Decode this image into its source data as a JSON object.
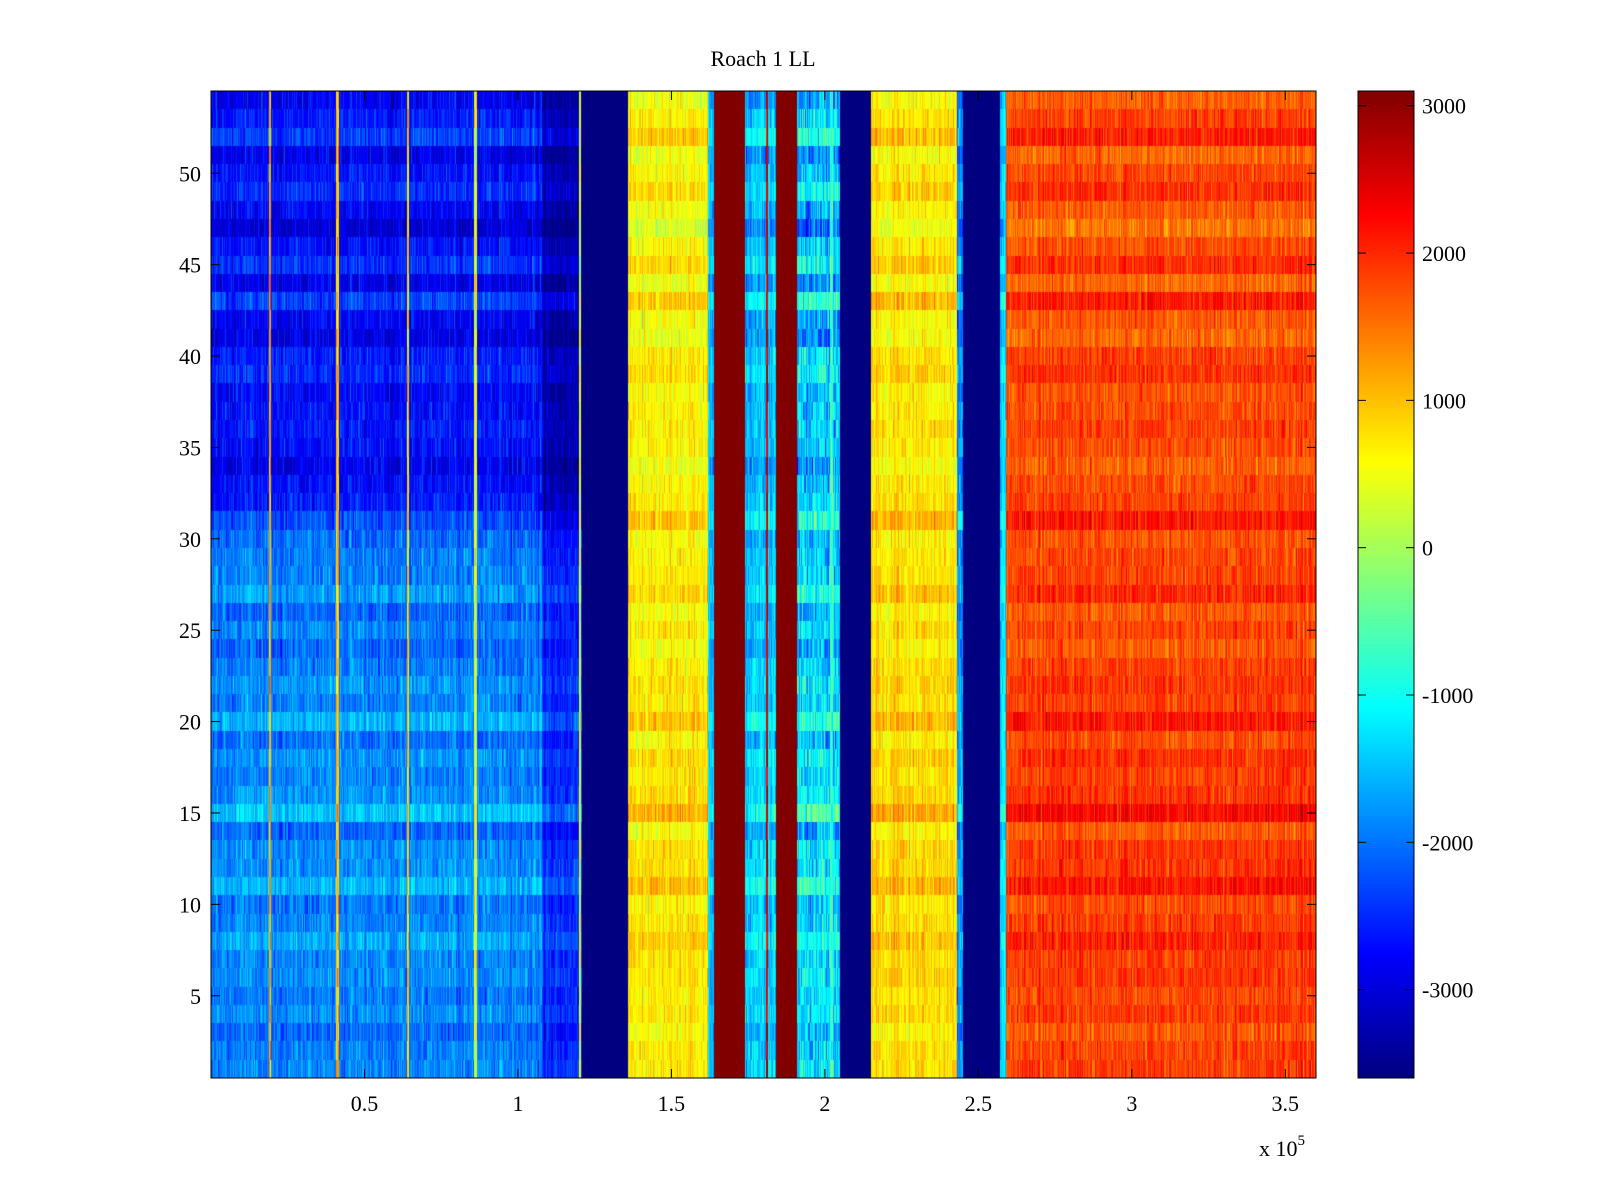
{
  "chart_data": {
    "type": "heatmap",
    "title": "Roach 1 LL",
    "xlabel": "",
    "ylabel": "",
    "x_multiplier_label": {
      "prefix": "x 10",
      "exponent": "5"
    },
    "xlim": [
      0,
      360000
    ],
    "ylim": [
      0.5,
      54.5
    ],
    "rows": 54,
    "x_ticks": [
      {
        "value": 50000,
        "label": "0.5"
      },
      {
        "value": 100000,
        "label": "1"
      },
      {
        "value": 150000,
        "label": "1.5"
      },
      {
        "value": 200000,
        "label": "2"
      },
      {
        "value": 250000,
        "label": "2.5"
      },
      {
        "value": 300000,
        "label": "3"
      },
      {
        "value": 350000,
        "label": "3.5"
      }
    ],
    "y_ticks": [
      {
        "value": 5,
        "label": "5"
      },
      {
        "value": 10,
        "label": "10"
      },
      {
        "value": 15,
        "label": "15"
      },
      {
        "value": 20,
        "label": "20"
      },
      {
        "value": 25,
        "label": "25"
      },
      {
        "value": 30,
        "label": "30"
      },
      {
        "value": 35,
        "label": "35"
      },
      {
        "value": 40,
        "label": "40"
      },
      {
        "value": 45,
        "label": "45"
      },
      {
        "value": 50,
        "label": "50"
      }
    ],
    "colorbar": {
      "colormap": "jet",
      "clim": [
        -3600,
        3100
      ],
      "ticks": [
        {
          "value": 3000,
          "label": "3000"
        },
        {
          "value": 2000,
          "label": "2000"
        },
        {
          "value": 1000,
          "label": "1000"
        },
        {
          "value": 0,
          "label": "0"
        },
        {
          "value": -1000,
          "label": "-1000"
        },
        {
          "value": -2000,
          "label": "-2000"
        },
        {
          "value": -3000,
          "label": "-3000"
        }
      ]
    },
    "bands": [
      {
        "x": [
          0,
          108000
        ],
        "value_rows_1_30": -1900,
        "value_rows_31_54": -2600,
        "noise": 350,
        "description": "low plateau"
      },
      {
        "x": [
          108000,
          121000
        ],
        "value_rows_1_30": -2500,
        "value_rows_31_54": -3200,
        "noise": 300,
        "description": "transition"
      },
      {
        "x": [
          121000,
          136000
        ],
        "value": -3600,
        "noise": 0,
        "description": "saturated low"
      },
      {
        "x": [
          136000,
          162000
        ],
        "value": 700,
        "noise": 300,
        "description": "mid plateau"
      },
      {
        "x": [
          162000,
          164000
        ],
        "value": -1500,
        "noise": 300
      },
      {
        "x": [
          164000,
          174000
        ],
        "value": 3100,
        "noise": 0,
        "description": "saturated high"
      },
      {
        "x": [
          174000,
          184000
        ],
        "value": -1400,
        "noise": 400
      },
      {
        "x": [
          184000,
          191000
        ],
        "value": 3100,
        "noise": 0,
        "description": "saturated high"
      },
      {
        "x": [
          191000,
          205000
        ],
        "value": -1300,
        "noise": 600
      },
      {
        "x": [
          205000,
          207000
        ],
        "value": -3600,
        "noise": 0
      },
      {
        "x": [
          207000,
          215000
        ],
        "value": -3600,
        "noise": 0,
        "description": "saturated low"
      },
      {
        "x": [
          215000,
          243000
        ],
        "value": 800,
        "noise": 300,
        "description": "mid plateau"
      },
      {
        "x": [
          243000,
          245000
        ],
        "value": -1800,
        "noise": 400
      },
      {
        "x": [
          245000,
          257000
        ],
        "value": -3600,
        "noise": 0,
        "description": "saturated low"
      },
      {
        "x": [
          257000,
          259000
        ],
        "value": -1200,
        "noise": 300
      },
      {
        "x": [
          259000,
          360000
        ],
        "value": 1850,
        "noise": 300,
        "description": "high plateau"
      }
    ],
    "spikes": [
      {
        "x": 19000,
        "value": 1200
      },
      {
        "x": 41000,
        "value": 1000
      },
      {
        "x": 64000,
        "value": 800
      },
      {
        "x": 86000,
        "value": 400
      },
      {
        "x": 120000,
        "value": 400
      },
      {
        "x": 181000,
        "value": 2600
      },
      {
        "x": 202000,
        "value": -700
      }
    ]
  }
}
